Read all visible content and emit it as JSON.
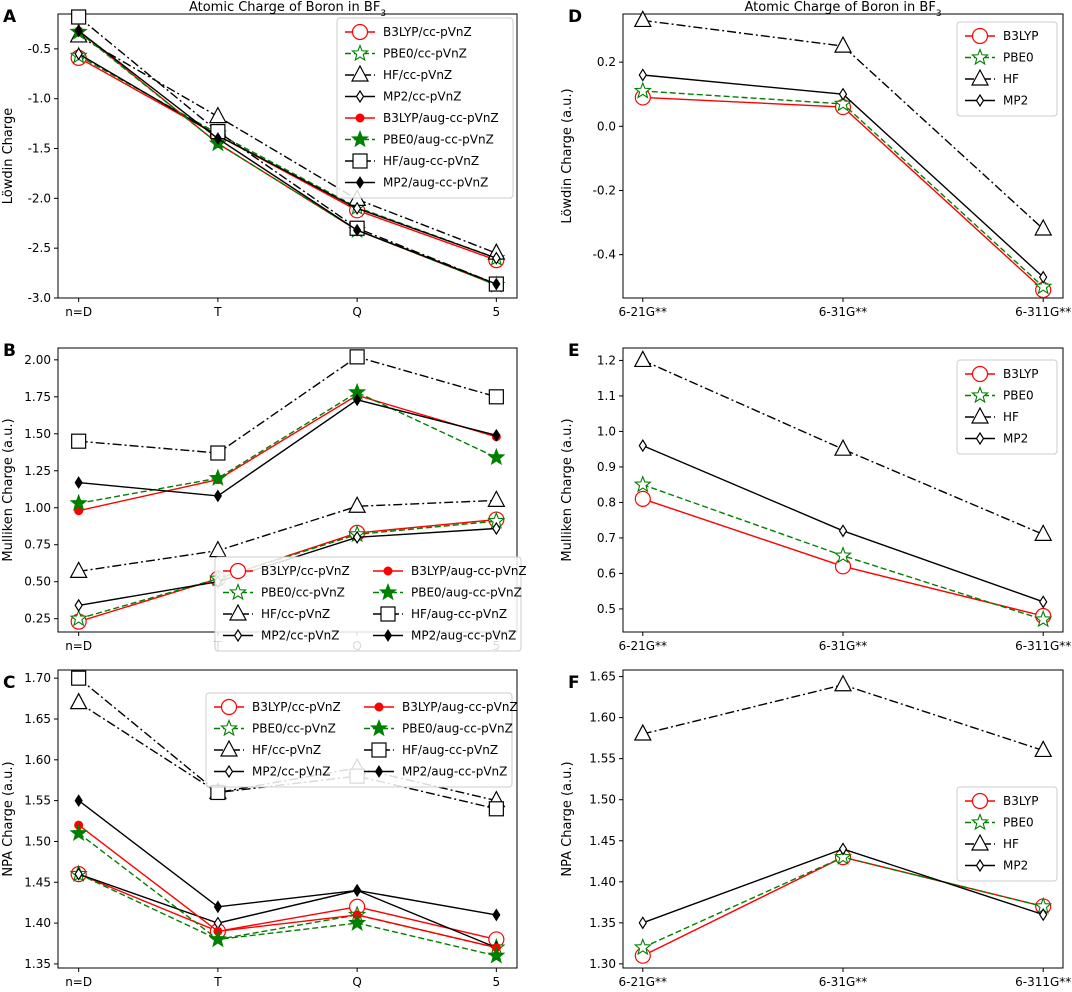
{
  "figure_title": "Atomic Charge of Boron in BF3",
  "styles": {
    "B3LYP": {
      "color": "#ff0000",
      "dash": "",
      "open": "circle",
      "filled": "dot"
    },
    "PBE0": {
      "color": "#008000",
      "dash": "6 3",
      "open": "star",
      "filled": "star"
    },
    "HF": {
      "color": "#000000",
      "dash": "9 3 2 3",
      "open": "triangle",
      "filled": "square"
    },
    "MP2": {
      "color": "#000000",
      "dash": "",
      "open": "thindiamond",
      "filled": "thindiamond"
    }
  },
  "chart_data": [
    {
      "panel": "A",
      "type": "line",
      "title": "Atomic Charge of Boron in BF3",
      "xlabel": "",
      "ylabel": "Löwdin Charge",
      "categories": [
        "n=D",
        "T",
        "Q",
        "5"
      ],
      "ylim": [
        -3.0,
        -0.15
      ],
      "yticks": [
        -0.5,
        -1.0,
        -1.5,
        -2.0,
        -2.5,
        -3.0
      ],
      "yfmt": 1,
      "legend_loc": "upper-right",
      "series": [
        {
          "name": "B3LYP/cc-pVnZ",
          "method": "B3LYP",
          "kind": "open",
          "values": [
            -0.59,
            -1.37,
            -2.12,
            -2.62
          ]
        },
        {
          "name": "PBE0/cc-pVnZ",
          "method": "PBE0",
          "kind": "open",
          "values": [
            -0.57,
            -1.35,
            -2.09,
            -2.6
          ]
        },
        {
          "name": "HF/cc-pVnZ",
          "method": "HF",
          "kind": "open",
          "values": [
            -0.37,
            -1.18,
            -2.01,
            -2.55
          ]
        },
        {
          "name": "MP2/cc-pVnZ",
          "method": "MP2",
          "kind": "open",
          "values": [
            -0.55,
            -1.37,
            -2.1,
            -2.6
          ]
        },
        {
          "name": "B3LYP/aug-cc-pVnZ",
          "method": "B3LYP",
          "kind": "filled",
          "values": [
            -0.32,
            -1.45,
            -2.32,
            -2.87
          ]
        },
        {
          "name": "PBE0/aug-cc-pVnZ",
          "method": "PBE0",
          "kind": "filled",
          "values": [
            -0.33,
            -1.45,
            -2.32,
            -2.87
          ]
        },
        {
          "name": "HF/aug-cc-pVnZ",
          "method": "HF",
          "kind": "filled",
          "values": [
            -0.18,
            -1.33,
            -2.3,
            -2.86
          ]
        },
        {
          "name": "MP2/aug-cc-pVnZ",
          "method": "MP2",
          "kind": "filled",
          "values": [
            -0.32,
            -1.4,
            -2.32,
            -2.86
          ]
        }
      ]
    },
    {
      "panel": "B",
      "type": "line",
      "title": "",
      "xlabel": "",
      "ylabel": "Mulliken Charge (a.u.)",
      "categories": [
        "n=D",
        "T",
        "Q",
        "5"
      ],
      "ylim": [
        0.16,
        2.08
      ],
      "yticks": [
        0.25,
        0.5,
        0.75,
        1.0,
        1.25,
        1.5,
        1.75,
        2.0
      ],
      "yfmt": 2,
      "legend_loc": "lower-right",
      "series": [
        {
          "name": "B3LYP/cc-pVnZ",
          "method": "B3LYP",
          "kind": "open",
          "values": [
            0.23,
            0.52,
            0.83,
            0.92
          ]
        },
        {
          "name": "PBE0/cc-pVnZ",
          "method": "PBE0",
          "kind": "open",
          "values": [
            0.25,
            0.52,
            0.82,
            0.91
          ]
        },
        {
          "name": "HF/cc-pVnZ",
          "method": "HF",
          "kind": "open",
          "values": [
            0.57,
            0.71,
            1.01,
            1.05
          ]
        },
        {
          "name": "MP2/cc-pVnZ",
          "method": "MP2",
          "kind": "open",
          "values": [
            0.34,
            0.5,
            0.8,
            0.86
          ]
        },
        {
          "name": "B3LYP/aug-cc-pVnZ",
          "method": "B3LYP",
          "kind": "filled",
          "values": [
            0.98,
            1.19,
            1.76,
            1.48
          ]
        },
        {
          "name": "PBE0/aug-cc-pVnZ",
          "method": "PBE0",
          "kind": "filled",
          "values": [
            1.03,
            1.2,
            1.78,
            1.34
          ]
        },
        {
          "name": "HF/aug-cc-pVnZ",
          "method": "HF",
          "kind": "filled",
          "values": [
            1.45,
            1.37,
            2.02,
            1.75
          ]
        },
        {
          "name": "MP2/aug-cc-pVnZ",
          "method": "MP2",
          "kind": "filled",
          "values": [
            1.17,
            1.08,
            1.73,
            1.49
          ]
        }
      ]
    },
    {
      "panel": "C",
      "type": "line",
      "title": "",
      "xlabel": "",
      "ylabel": "NPA Charge (a.u.)",
      "categories": [
        "n=D",
        "T",
        "Q",
        "5"
      ],
      "ylim": [
        1.345,
        1.71
      ],
      "yticks": [
        1.35,
        1.4,
        1.45,
        1.5,
        1.55,
        1.6,
        1.65,
        1.7
      ],
      "yfmt": 2,
      "legend_loc": "upper-right",
      "series": [
        {
          "name": "B3LYP/cc-pVnZ",
          "method": "B3LYP",
          "kind": "open",
          "values": [
            1.46,
            1.39,
            1.42,
            1.38
          ]
        },
        {
          "name": "PBE0/cc-pVnZ",
          "method": "PBE0",
          "kind": "open",
          "values": [
            1.46,
            1.38,
            1.41,
            1.37
          ]
        },
        {
          "name": "HF/cc-pVnZ",
          "method": "HF",
          "kind": "open",
          "values": [
            1.67,
            1.56,
            1.59,
            1.55
          ]
        },
        {
          "name": "MP2/cc-pVnZ",
          "method": "MP2",
          "kind": "open",
          "values": [
            1.46,
            1.4,
            1.44,
            1.37
          ]
        },
        {
          "name": "B3LYP/aug-cc-pVnZ",
          "method": "B3LYP",
          "kind": "filled",
          "values": [
            1.52,
            1.39,
            1.41,
            1.37
          ]
        },
        {
          "name": "PBE0/aug-cc-pVnZ",
          "method": "PBE0",
          "kind": "filled",
          "values": [
            1.51,
            1.38,
            1.4,
            1.36
          ]
        },
        {
          "name": "HF/aug-cc-pVnZ",
          "method": "HF",
          "kind": "filled",
          "values": [
            1.7,
            1.56,
            1.58,
            1.54
          ]
        },
        {
          "name": "MP2/aug-cc-pVnZ",
          "method": "MP2",
          "kind": "filled",
          "values": [
            1.55,
            1.42,
            1.44,
            1.41
          ]
        }
      ]
    },
    {
      "panel": "D",
      "type": "line",
      "title": "Atomic Charge of Boron in BF3",
      "xlabel": "",
      "ylabel": "Löwdin Charge (a.u.)",
      "categories": [
        "6-21G**",
        "6-31G**",
        "6-311G**"
      ],
      "ylim": [
        -0.535,
        0.35
      ],
      "yticks": [
        0.2,
        0.0,
        -0.2,
        -0.4
      ],
      "yfmt": 1,
      "legend_loc": "upper-right",
      "series": [
        {
          "name": "B3LYP",
          "method": "B3LYP",
          "kind": "open",
          "values": [
            0.09,
            0.06,
            -0.51
          ]
        },
        {
          "name": "PBE0",
          "method": "PBE0",
          "kind": "open",
          "values": [
            0.11,
            0.07,
            -0.5
          ]
        },
        {
          "name": "HF",
          "method": "HF",
          "kind": "open",
          "values": [
            0.33,
            0.25,
            -0.32
          ]
        },
        {
          "name": "MP2",
          "method": "MP2",
          "kind": "open",
          "values": [
            0.16,
            0.1,
            -0.47
          ]
        }
      ]
    },
    {
      "panel": "E",
      "type": "line",
      "title": "",
      "xlabel": "",
      "ylabel": "Mulliken Charge (a.u.)",
      "categories": [
        "6-21G**",
        "6-31G**",
        "6-311G**"
      ],
      "ylim": [
        0.435,
        1.235
      ],
      "yticks": [
        0.5,
        0.6,
        0.7,
        0.8,
        0.9,
        1.0,
        1.1,
        1.2
      ],
      "yfmt": 1,
      "legend_loc": "upper-right",
      "series": [
        {
          "name": "B3LYP",
          "method": "B3LYP",
          "kind": "open",
          "values": [
            0.81,
            0.62,
            0.48
          ]
        },
        {
          "name": "PBE0",
          "method": "PBE0",
          "kind": "open",
          "values": [
            0.85,
            0.65,
            0.47
          ]
        },
        {
          "name": "HF",
          "method": "HF",
          "kind": "open",
          "values": [
            1.2,
            0.95,
            0.71
          ]
        },
        {
          "name": "MP2",
          "method": "MP2",
          "kind": "open",
          "values": [
            0.96,
            0.72,
            0.52
          ]
        }
      ]
    },
    {
      "panel": "F",
      "type": "line",
      "title": "",
      "xlabel": "",
      "ylabel": "NPA Charge (a.u.)",
      "categories": [
        "6-21G**",
        "6-31G**",
        "6-311G**"
      ],
      "ylim": [
        1.295,
        1.658
      ],
      "yticks": [
        1.3,
        1.35,
        1.4,
        1.45,
        1.5,
        1.55,
        1.6,
        1.65
      ],
      "yfmt": 2,
      "legend_loc": "center-right",
      "series": [
        {
          "name": "B3LYP",
          "method": "B3LYP",
          "kind": "open",
          "values": [
            1.31,
            1.43,
            1.37
          ]
        },
        {
          "name": "PBE0",
          "method": "PBE0",
          "kind": "open",
          "values": [
            1.32,
            1.43,
            1.37
          ]
        },
        {
          "name": "HF",
          "method": "HF",
          "kind": "open",
          "values": [
            1.58,
            1.64,
            1.56
          ]
        },
        {
          "name": "MP2",
          "method": "MP2",
          "kind": "open",
          "values": [
            1.35,
            1.44,
            1.36
          ]
        }
      ]
    }
  ]
}
